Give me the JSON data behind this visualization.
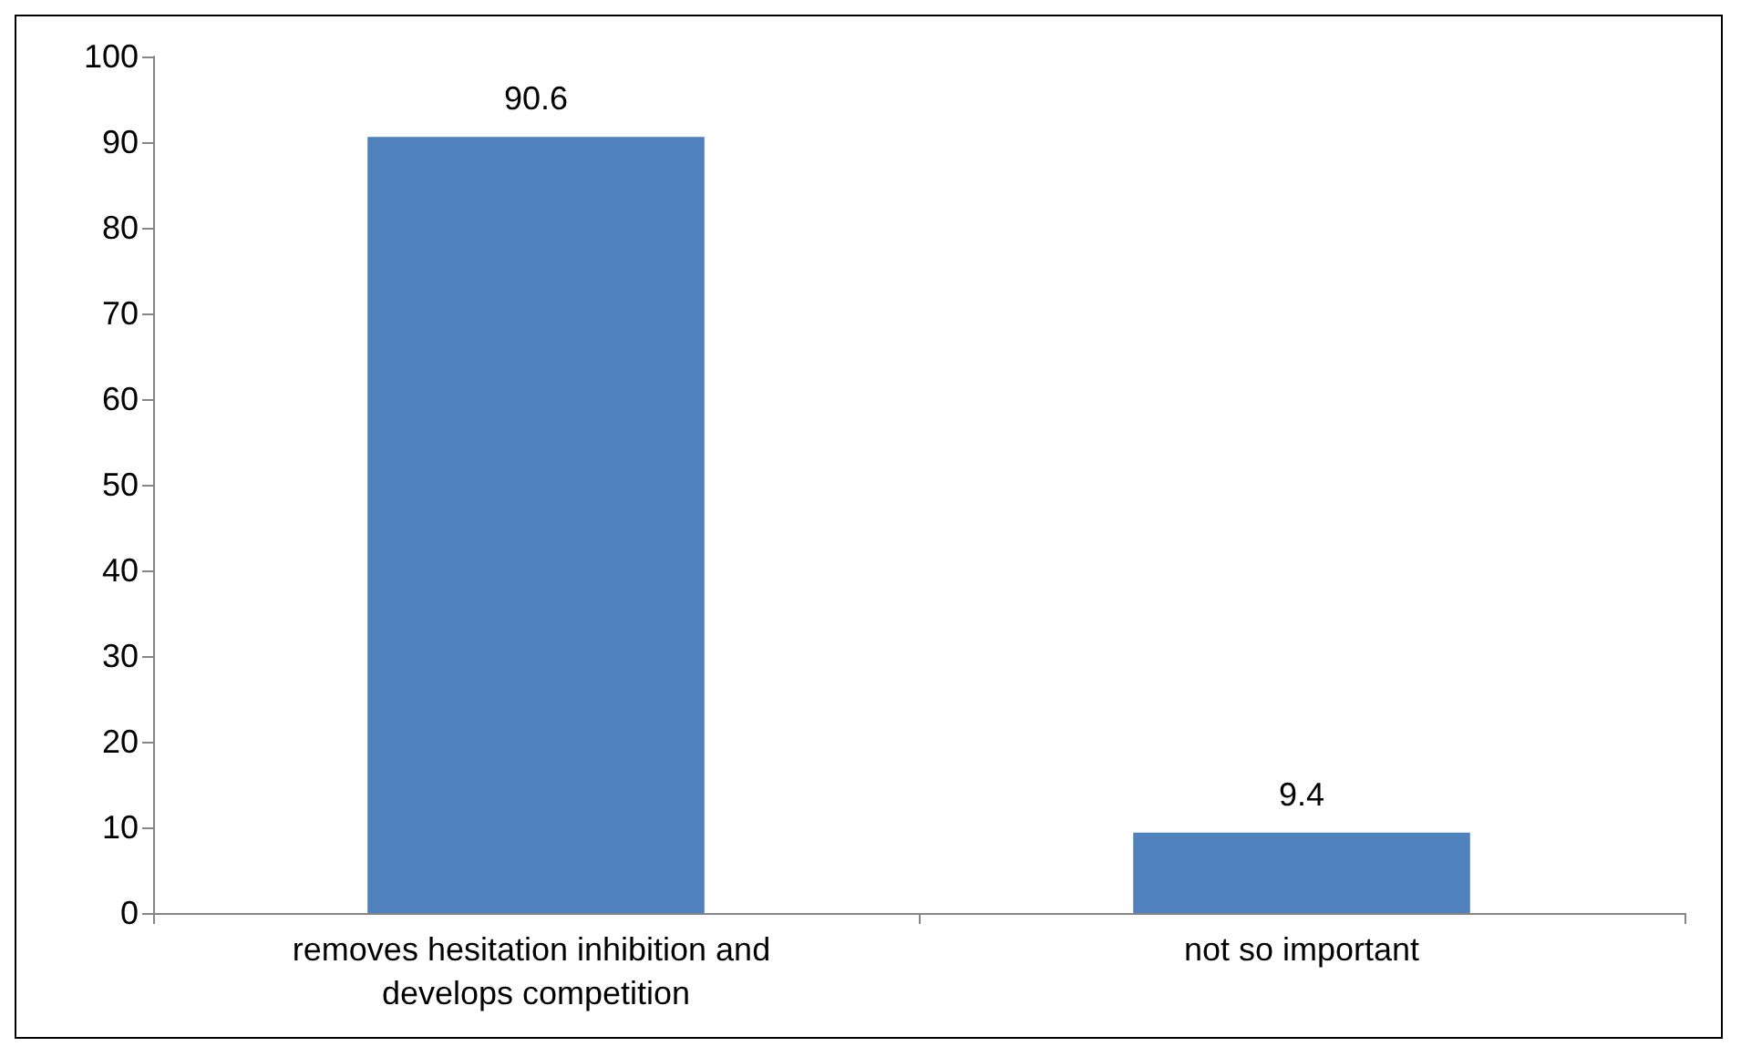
{
  "chart_data": {
    "type": "bar",
    "categories": [
      "removes hesitation inhibition and develops competition",
      "not so important"
    ],
    "values": [
      90.6,
      9.4
    ],
    "color": "#4f81bd",
    "ylim": [
      0,
      100
    ],
    "yticks": [
      0,
      10,
      20,
      30,
      40,
      50,
      60,
      70,
      80,
      90,
      100
    ],
    "grid": false,
    "data_labels": true
  }
}
